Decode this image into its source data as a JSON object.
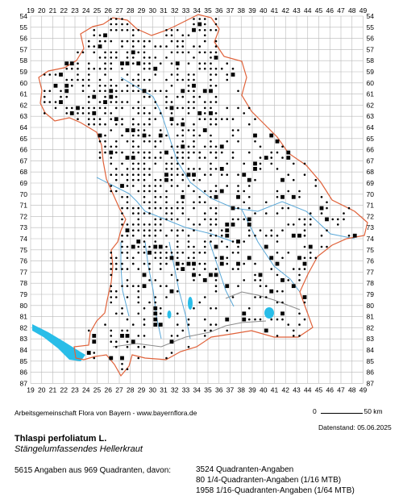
{
  "map": {
    "x_labels": [
      "19",
      "20",
      "21",
      "22",
      "23",
      "24",
      "25",
      "26",
      "27",
      "28",
      "29",
      "30",
      "31",
      "32",
      "33",
      "34",
      "35",
      "36",
      "37",
      "38",
      "39",
      "40",
      "41",
      "42",
      "43",
      "44",
      "45",
      "46",
      "47",
      "48",
      "49"
    ],
    "y_labels": [
      "54",
      "55",
      "56",
      "57",
      "58",
      "59",
      "60",
      "61",
      "62",
      "63",
      "64",
      "65",
      "66",
      "67",
      "68",
      "69",
      "70",
      "71",
      "72",
      "73",
      "74",
      "75",
      "76",
      "77",
      "78",
      "79",
      "80",
      "81",
      "82",
      "83",
      "84",
      "85",
      "86",
      "87"
    ],
    "colors": {
      "grid": "#b8b8b8",
      "border_outer": "#e0623a",
      "border_inner": "#8a8a8a",
      "rivers": "#5aa8d8",
      "lakes": "#29bde8",
      "dots": "#000000"
    }
  },
  "footer": {
    "attribution": "Arbeitsgemeinschaft Flora von Bayern - www.bayernflora.de",
    "scale_start": "0",
    "scale_end": "50 km",
    "date": "Datenstand: 05.06.2025",
    "species": "Thlaspi perfoliatum L.",
    "german_name": "Stängelumfassendes Hellerkraut",
    "stats": "5615 Angaben aus 969 Quadranten, davon:",
    "legend": [
      "3524 Quadranten-Angaben",
      "80 1/4-Quadranten-Angaben (1/16 MTB)",
      "1958 1/16-Quadranten-Angaben (1/64 MTB)"
    ]
  }
}
